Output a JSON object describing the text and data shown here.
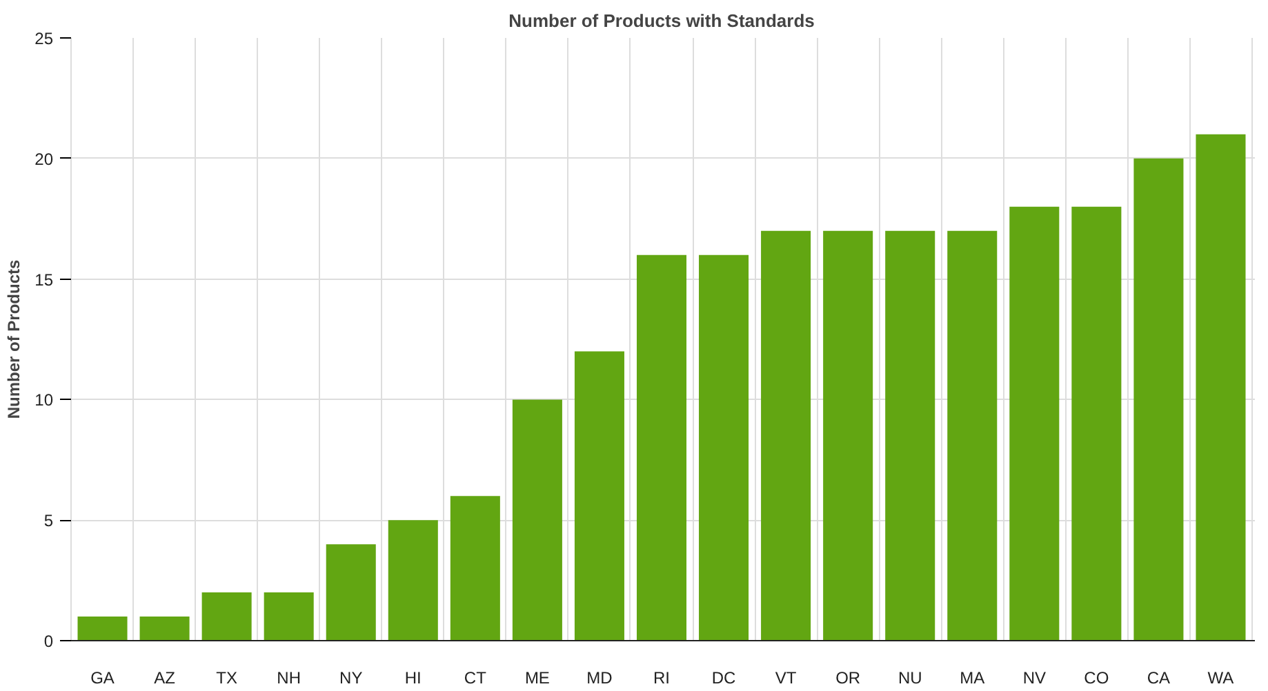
{
  "chart_data": {
    "type": "bar",
    "title": "Number of Products with Standards",
    "ylabel": "Number of Products",
    "categories": [
      "GA",
      "AZ",
      "TX",
      "NH",
      "NY",
      "HI",
      "CT",
      "ME",
      "MD",
      "RI",
      "DC",
      "VT",
      "OR",
      "NU",
      "MA",
      "NV",
      "CO",
      "CA",
      "WA"
    ],
    "values": [
      1,
      1,
      2,
      2,
      4,
      5,
      6,
      10,
      12,
      16,
      16,
      17,
      17,
      17,
      17,
      18,
      18,
      20,
      21
    ],
    "color": "#62a612",
    "ylim": [
      0,
      25
    ],
    "yticks": [
      0,
      5,
      10,
      15,
      20,
      25
    ],
    "grid": true
  }
}
